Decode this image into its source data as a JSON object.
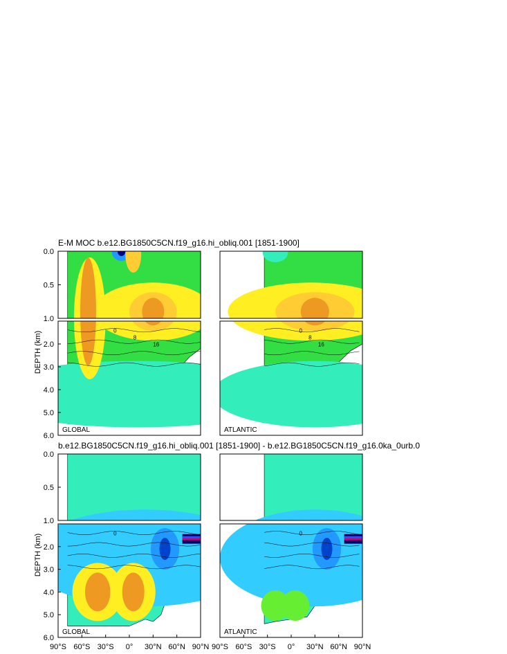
{
  "figure": {
    "title_top": "E-M MOC  b.e12.BG1850C5CN.f19_g16.hi_obliq.001 [1851-1900]",
    "title_bottom": "b.e12.BG1850C5CN.f19_g16.hi_obliq.001 [1851-1900] - b.e12.BG1850C5CN.f19_g16.0ka_0urb.0",
    "ylabel": "DEPTH (km)"
  },
  "chart_data": [
    {
      "type": "heatmap",
      "panel_label": "GLOBAL",
      "title": "E-M MOC  b.e12.BG1850C5CN.f19_g16.hi_obliq.001 [1851-1900]",
      "ylabel": "DEPTH (km)",
      "x_ticks": [
        "90°S",
        "60°S",
        "30°S",
        "0°",
        "30°N",
        "60°N",
        "90°N"
      ],
      "upper_y_ticks": [
        "0.0",
        "0.5",
        "1.0"
      ],
      "lower_y_ticks": [
        "2.0",
        "3.0",
        "4.0",
        "5.0",
        "6.0"
      ],
      "xlim": [
        -90,
        90
      ],
      "ylim_km": [
        6.0,
        0.0
      ],
      "contour_labels": [
        "0",
        "8",
        "16"
      ]
    },
    {
      "type": "heatmap",
      "panel_label": "ATLANTIC",
      "x_ticks": [
        "90°S",
        "60°S",
        "30°S",
        "0°",
        "30°N",
        "60°N",
        "90°N"
      ],
      "xlim": [
        -90,
        90
      ],
      "ylim_km": [
        6.0,
        0.0
      ],
      "contour_labels": [
        "0",
        "8",
        "16"
      ]
    },
    {
      "type": "heatmap",
      "panel_label": "GLOBAL",
      "title": "b.e12.BG1850C5CN.f19_g16.hi_obliq.001 [1851-1900] - b.e12.BG1850C5CN.f19_g16.0ka_0urb.0",
      "ylabel": "DEPTH (km)",
      "x_ticks": [
        "90°S",
        "60°S",
        "30°S",
        "0°",
        "30°N",
        "60°N",
        "90°N"
      ],
      "upper_y_ticks": [
        "0.0",
        "0.5",
        "1.0"
      ],
      "lower_y_ticks": [
        "2.0",
        "3.0",
        "4.0",
        "5.0",
        "6.0"
      ],
      "xlim": [
        -90,
        90
      ],
      "ylim_km": [
        6.0,
        0.0
      ],
      "contour_labels": [
        "0"
      ]
    },
    {
      "type": "heatmap",
      "panel_label": "ATLANTIC",
      "x_ticks": [
        "90°S",
        "60°S",
        "30°S",
        "0°",
        "30°N",
        "60°N",
        "90°N"
      ],
      "xlim": [
        -90,
        90
      ],
      "ylim_km": [
        6.0,
        0.0
      ],
      "contour_labels": [
        "0"
      ]
    }
  ],
  "colors": {
    "green_bg": "#33dd44",
    "teal": "#33eebb",
    "yellow": "#ffee22",
    "orange": "#ee9922",
    "blue": "#2299ff",
    "navy": "#000088"
  }
}
